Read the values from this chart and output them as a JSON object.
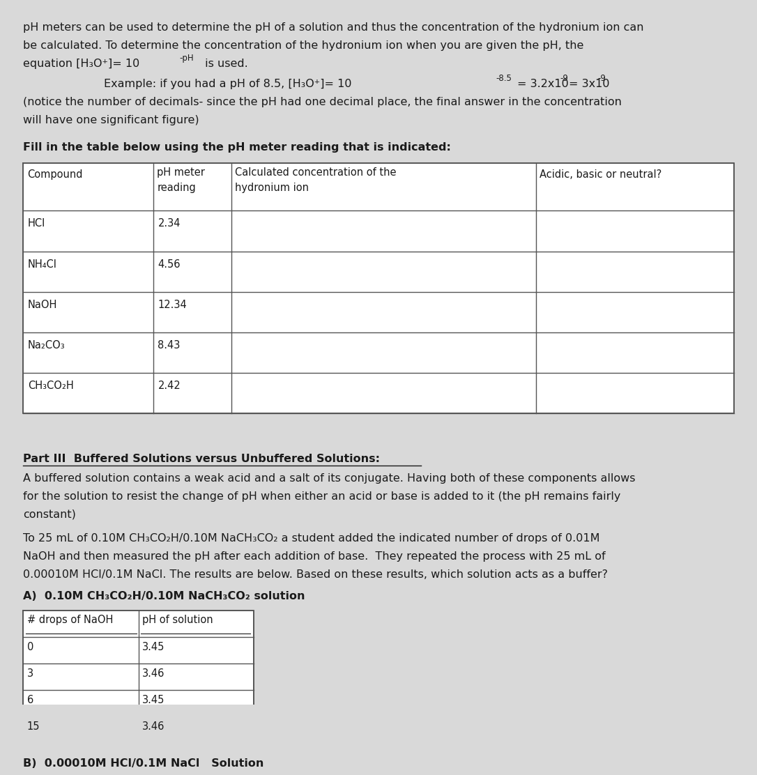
{
  "bg_color": "#d9d9d9",
  "text_color": "#1a1a1a",
  "font_size_body": 11.5,
  "font_size_small": 10.5,
  "para1_line1": "pH meters can be used to determine the pH of a solution and thus the concentration of the hydronium ion can",
  "para1_line2": "be calculated. To determine the concentration of the hydronium ion when you are given the pH, the",
  "para1_line3_a": "equation [H₃O⁺]= 10",
  "para1_line3_sup": "-pH",
  "para1_line3_b": " is used.",
  "example_a": "Example: if you had a pH of 8.5, [H₃O⁺]= 10",
  "example_sup1": "-8.5",
  "example_b": "= 3.2x10",
  "example_sup2": "-9",
  "example_c": "= 3x10",
  "example_sup3": "-9",
  "para2_line1": "(notice the number of decimals- since the pH had one decimal place, the final answer in the concentration",
  "para2_line2": "will have one significant figure)",
  "fill_in_label": "Fill in the table below using the pH meter reading that is indicated:",
  "table1_headers": [
    "Compound",
    "pH meter\nreading",
    "Calculated concentration of the\nhydronium ion",
    "Acidic, basic or neutral?"
  ],
  "table1_rows": [
    [
      "HCl",
      "2.34",
      "",
      ""
    ],
    [
      "NH₄Cl",
      "4.56",
      "",
      ""
    ],
    [
      "NaOH",
      "12.34",
      "",
      ""
    ],
    [
      "Na₂CO₃",
      "8.43",
      "",
      ""
    ],
    [
      "CH₃CO₂H",
      "2.42",
      "",
      ""
    ]
  ],
  "part3_title": "Part III  Buffered Solutions versus Unbuffered Solutions:",
  "part3_para1_line1": "A buffered solution contains a weak acid and a salt of its conjugate. Having both of these components allows",
  "part3_para1_line2": "for the solution to resist the change of pH when either an acid or base is added to it (the pH remains fairly",
  "part3_para1_line3": "constant)",
  "part3_para2_line1": "To 25 mL of 0.10M CH₃CO₂H/0.10M NaCH₃CO₂ a student added the indicated number of drops of 0.01M",
  "part3_para2_line2": "NaOH and then measured the pH after each addition of base.  They repeated the process with 25 mL of",
  "part3_para2_line3": "0.00010M HCl/0.1M NaCl. The results are below. Based on these results, which solution acts as a buffer?",
  "tableA_title": "A)  0.10M CH₃CO₂H/0.10M NaCH₃CO₂ solution",
  "tableA_header1": "# drops of NaOH",
  "tableA_header2": "pH of solution",
  "tableA_rows": [
    [
      "0",
      "3.45"
    ],
    [
      "3",
      "3.46"
    ],
    [
      "6",
      "3.45"
    ],
    [
      "15",
      "3.46"
    ]
  ],
  "tableB_label": "B)  0.00010M HCl/0.1M NaCl   Solution"
}
